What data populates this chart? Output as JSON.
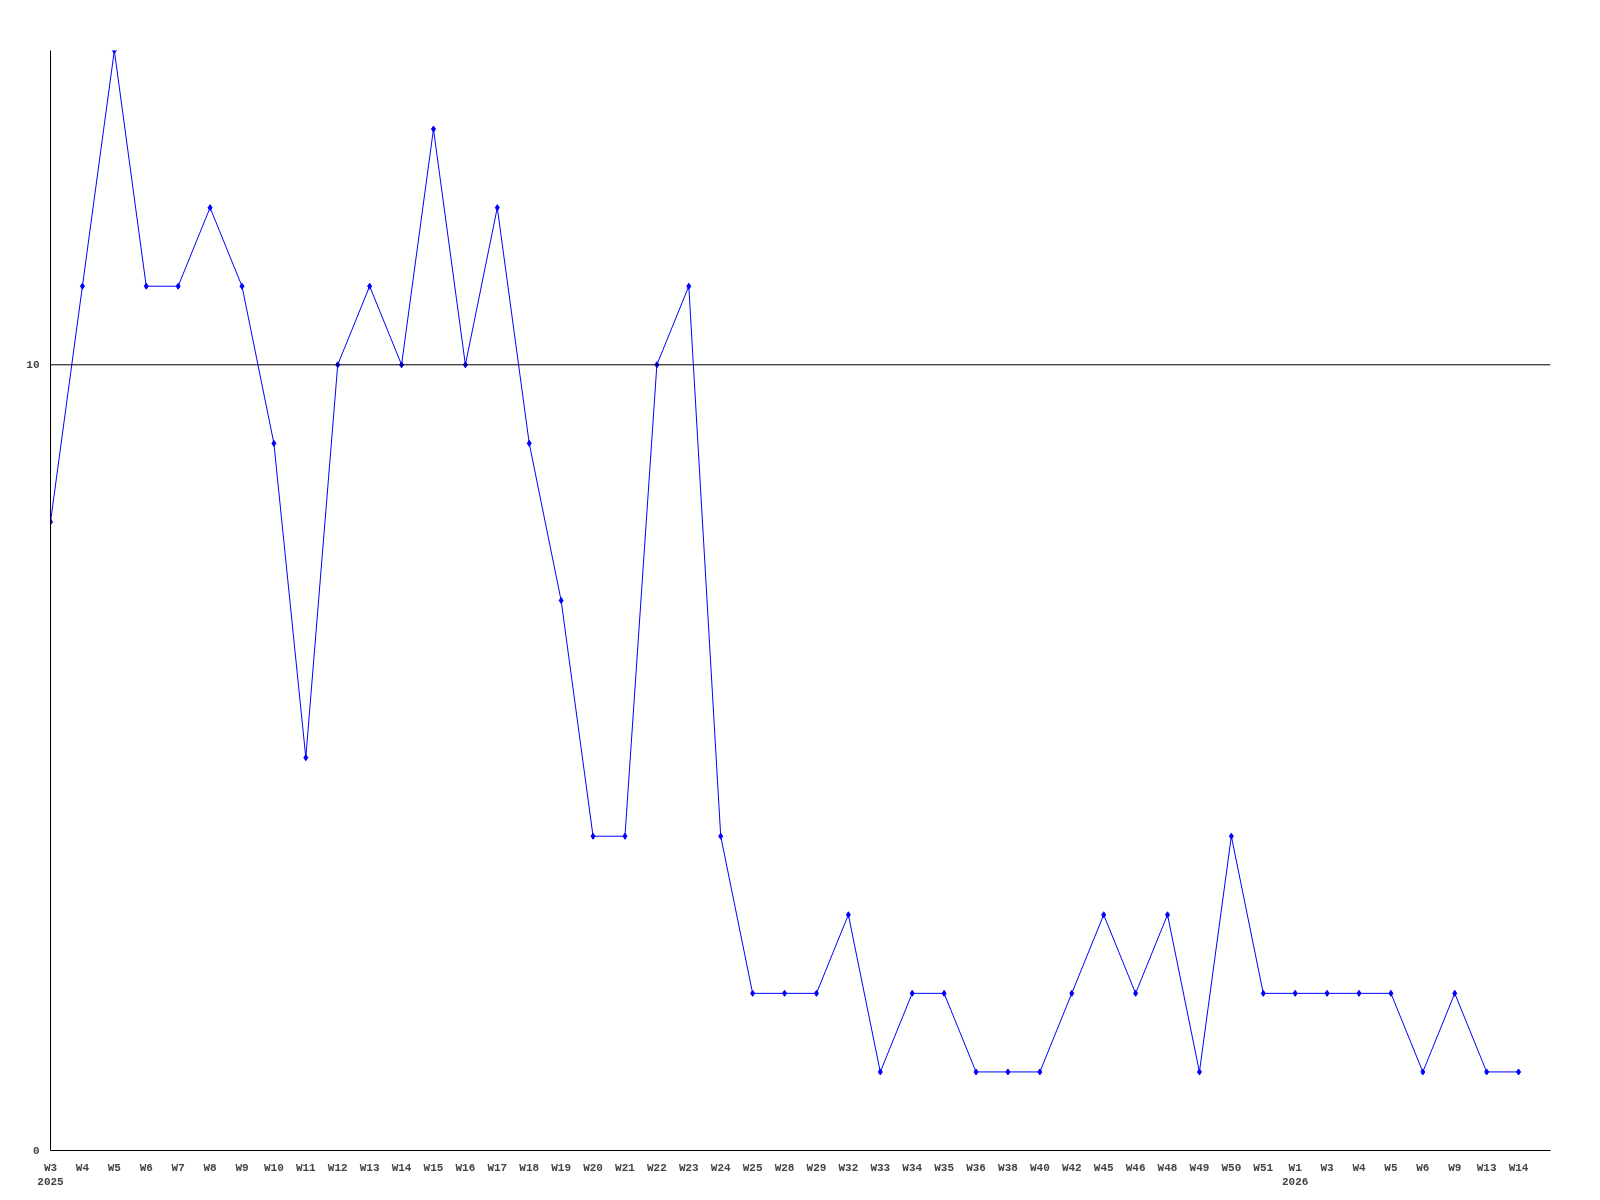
{
  "chart_data": {
    "type": "line",
    "categories": [
      "W3\n2025",
      "W4",
      "W5",
      "W6",
      "W7",
      "W8",
      "W9",
      "W10",
      "W11",
      "W12",
      "W13",
      "W14",
      "W15",
      "W16",
      "W17",
      "W18",
      "W19",
      "W20",
      "W21",
      "W22",
      "W23",
      "W24",
      "W25",
      "W28",
      "W29",
      "W32",
      "W33",
      "W34",
      "W35",
      "W36",
      "W38",
      "W40",
      "W42",
      "W45",
      "W46",
      "W48",
      "W49",
      "W50",
      "W51",
      "W1\n2026",
      "W3",
      "W4",
      "W5",
      "W6",
      "W9",
      "W13",
      "W14"
    ],
    "series": [
      {
        "color": "#0000ff",
        "values": [
          8,
          11,
          14,
          11,
          11,
          12,
          11,
          9,
          5,
          10,
          11,
          10,
          13,
          10,
          12,
          9,
          7,
          4,
          4,
          10,
          11,
          4,
          2,
          2,
          2,
          3,
          1,
          2,
          2,
          1,
          1,
          1,
          2,
          3,
          2,
          3,
          1,
          4,
          2,
          2,
          2,
          2,
          2,
          1,
          2,
          1,
          1
        ]
      }
    ],
    "ylim": [
      0,
      14
    ],
    "yticks": [
      0,
      10
    ],
    "ref_lines": [
      {
        "axis": "y",
        "value": 10,
        "color": "#000000"
      }
    ],
    "marker": "diamond"
  }
}
